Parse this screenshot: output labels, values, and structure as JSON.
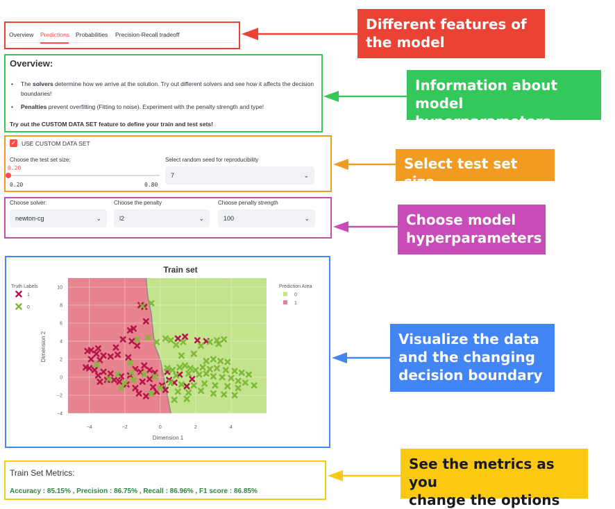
{
  "tabs": [
    {
      "label": "Overview",
      "active": false
    },
    {
      "label": "Predictions",
      "active": true
    },
    {
      "label": "Probabilities",
      "active": false
    },
    {
      "label": "Precision-Recall tradeoff",
      "active": false
    }
  ],
  "overview": {
    "title": "Overview:",
    "bullet1_bold": "solvers",
    "bullet1_pre": "The ",
    "bullet1_post": " determine how we arrive at the solution. Try out different solvers and see how it affects the decision boundaries!",
    "bullet2_bold": "Penalties",
    "bullet2_post": " prevent overfitting (Fitting to noise). Experiment with the penalty strength and type!",
    "cta": "Try out the CUSTOM DATA SET feature to define your train and test sets!"
  },
  "custom_data": {
    "checkbox_label": "USE CUSTOM DATA SET",
    "checked": true,
    "test_size_label": "Choose the test set size:",
    "test_size_value": "0.20",
    "slider_min": "0.20",
    "slider_max": "0.80",
    "slider_fraction": 0,
    "seed_label": "Select random seed for reproducibility",
    "seed_value": "7"
  },
  "hyperparams": {
    "solver_label": "Choose solver:",
    "solver_value": "newton-cg",
    "penalty_label": "Choose the penalty",
    "penalty_value": "l2",
    "strength_label": "Choose penalty strength",
    "strength_value": "100"
  },
  "chart_data": {
    "type": "scatter",
    "title": "Train set",
    "xlabel": "Dimension 1",
    "ylabel": "Dimension 2",
    "xlim": [
      -5.2,
      6
    ],
    "ylim": [
      -4,
      11
    ],
    "xticks": [
      "−4",
      "−2",
      "0",
      "2",
      "4"
    ],
    "xtick_values": [
      -4,
      -2,
      0,
      2,
      4
    ],
    "yticks": [
      "−4",
      "−2",
      "0",
      "2",
      "4",
      "6",
      "8",
      "10"
    ],
    "ytick_values": [
      -4,
      -2,
      0,
      2,
      4,
      6,
      8,
      10
    ],
    "grid": true,
    "legend_left": {
      "title": "Truth Labels",
      "items": [
        "1",
        "0"
      ]
    },
    "legend_right": {
      "title": "Prediction Area",
      "items": [
        "0",
        "1"
      ]
    },
    "colors": {
      "class1_area": "#e8848f",
      "class0_area": "#c3e38c",
      "class1_point": "#b5174a",
      "class0_point": "#7fb93a"
    },
    "decision_boundary": [
      [
        -0.8,
        11
      ],
      [
        -0.7,
        9
      ],
      [
        -0.5,
        7
      ],
      [
        -0.4,
        5
      ],
      [
        -0.3,
        3.5
      ],
      [
        0,
        2
      ],
      [
        0.2,
        0
      ],
      [
        0.4,
        -2
      ],
      [
        0.6,
        -4
      ]
    ],
    "series": [
      {
        "name": "1",
        "points": [
          [
            -0.9,
            7.8
          ],
          [
            -1.1,
            8.0
          ],
          [
            -0.8,
            6.2
          ],
          [
            -1.5,
            5.4
          ],
          [
            -1.7,
            5.2
          ],
          [
            -2.1,
            4.2
          ],
          [
            -1.6,
            4.0
          ],
          [
            -2.5,
            3.3
          ],
          [
            -1.3,
            3.5
          ],
          [
            -3.5,
            3.2
          ],
          [
            -3.9,
            3.0
          ],
          [
            -4.1,
            2.9
          ],
          [
            -3.6,
            2.6
          ],
          [
            -3.2,
            2.4
          ],
          [
            -2.8,
            2.3
          ],
          [
            -2.4,
            2.5
          ],
          [
            -1.8,
            2.2
          ],
          [
            -3.9,
            2.0
          ],
          [
            -3.4,
            1.9
          ],
          [
            -4.2,
            1.1
          ],
          [
            -4.0,
            1.0
          ],
          [
            -3.7,
            0.8
          ],
          [
            -3.2,
            0.6
          ],
          [
            -2.8,
            0.4
          ],
          [
            -3.5,
            0.2
          ],
          [
            -2.2,
            0.1
          ],
          [
            -2.6,
            -0.3
          ],
          [
            -1.7,
            0.2
          ],
          [
            -1.4,
            0.9
          ],
          [
            -1.1,
            0.6
          ],
          [
            -0.9,
            1.3
          ],
          [
            -0.6,
            0.8
          ],
          [
            -0.3,
            0.5
          ],
          [
            -1.9,
            -0.8
          ],
          [
            -2.3,
            -0.5
          ],
          [
            -3.0,
            -0.3
          ],
          [
            -3.4,
            -0.5
          ],
          [
            -1.4,
            -1.2
          ],
          [
            -1.0,
            -0.5
          ],
          [
            -0.6,
            -0.2
          ],
          [
            -0.4,
            -1.1
          ],
          [
            -0.2,
            -1.6
          ],
          [
            0.1,
            -0.9
          ],
          [
            -1.2,
            -1.8
          ],
          [
            -0.8,
            -2.1
          ],
          [
            0.3,
            -1.4
          ],
          [
            0.5,
            -0.3
          ],
          [
            0.4,
            0.6
          ],
          [
            1.1,
            0.3
          ],
          [
            0.8,
            -0.6
          ],
          [
            1.5,
            -1.0
          ],
          [
            1.4,
            4.5
          ],
          [
            1.0,
            4.3
          ],
          [
            2.1,
            4.1
          ],
          [
            2.6,
            4.0
          ],
          [
            1.8,
            -0.2
          ]
        ]
      },
      {
        "name": "0",
        "points": [
          [
            -1.0,
            7.9
          ],
          [
            -0.5,
            8.2
          ],
          [
            -0.2,
            3.9
          ],
          [
            0.3,
            4.3
          ],
          [
            0.6,
            4.1
          ],
          [
            1.3,
            3.9
          ],
          [
            0.9,
            3.6
          ],
          [
            1.2,
            2.4
          ],
          [
            1.9,
            2.6
          ],
          [
            2.3,
            3.5
          ],
          [
            2.8,
            3.9
          ],
          [
            3.2,
            4.1
          ],
          [
            3.6,
            4.2
          ],
          [
            3.3,
            3.7
          ],
          [
            2.6,
            1.8
          ],
          [
            3.0,
            2.0
          ],
          [
            3.4,
            1.8
          ],
          [
            3.8,
            1.7
          ],
          [
            0.4,
            1.0
          ],
          [
            0.7,
            0.8
          ],
          [
            1.1,
            1.1
          ],
          [
            1.4,
            1.3
          ],
          [
            1.7,
            1.0
          ],
          [
            2.0,
            0.8
          ],
          [
            2.4,
            1.1
          ],
          [
            2.8,
            0.9
          ],
          [
            3.2,
            1.0
          ],
          [
            3.7,
            0.8
          ],
          [
            4.2,
            0.7
          ],
          [
            4.6,
            0.5
          ],
          [
            5.0,
            0.3
          ],
          [
            0.9,
            0.2
          ],
          [
            1.6,
            0.4
          ],
          [
            2.2,
            0.3
          ],
          [
            2.6,
            0.4
          ],
          [
            3.0,
            0.1
          ],
          [
            3.5,
            0.0
          ],
          [
            4.0,
            -0.1
          ],
          [
            4.4,
            -0.4
          ],
          [
            4.8,
            -0.6
          ],
          [
            5.3,
            -0.9
          ],
          [
            0.6,
            -0.6
          ],
          [
            1.2,
            -0.8
          ],
          [
            1.9,
            -0.9
          ],
          [
            2.5,
            -0.7
          ],
          [
            3.1,
            -0.9
          ],
          [
            3.8,
            -1.0
          ],
          [
            4.4,
            -1.2
          ],
          [
            1.0,
            -1.6
          ],
          [
            1.6,
            -1.7
          ],
          [
            2.3,
            -1.5
          ],
          [
            3.0,
            -1.8
          ],
          [
            3.6,
            -1.9
          ],
          [
            4.2,
            -2.0
          ],
          [
            0.8,
            -2.5
          ],
          [
            1.5,
            -2.4
          ],
          [
            -2.9,
            -0.2
          ],
          [
            -2.4,
            0.3
          ],
          [
            -2.0,
            -0.6
          ],
          [
            -1.6,
            0.5
          ],
          [
            -3.6,
            1.4
          ],
          [
            -1.3,
            4.2
          ],
          [
            -0.7,
            4.4
          ],
          [
            -2.2,
            -1.2
          ],
          [
            -1.5,
            -0.3
          ],
          [
            -0.9,
            0.3
          ],
          [
            -0.3,
            0.1
          ],
          [
            0.0,
            -1.2
          ],
          [
            -0.5,
            -1.8
          ],
          [
            -1.7,
            1.6
          ]
        ]
      }
    ]
  },
  "metrics": {
    "title": "Train Set Metrics:",
    "text": "Accuracy : 85.15% , Precision : 86.75% , Recall : 86.96% , F1 score : 86.85%"
  },
  "annotations": [
    {
      "text": "Different features of\nthe model",
      "color": "#ea4335"
    },
    {
      "text": "Information about\nmodel hyperparameters",
      "color": "#34c759"
    },
    {
      "text": "Select test set size",
      "color": "#f29b21"
    },
    {
      "text": "Choose model\nhyperparameters",
      "color": "#c84bb8"
    },
    {
      "text": "Visualize the data\nand the changing\ndecision boundary",
      "color": "#4285f4"
    },
    {
      "text": "See the metrics as you\nchange the options",
      "color": "#fbc812"
    }
  ]
}
